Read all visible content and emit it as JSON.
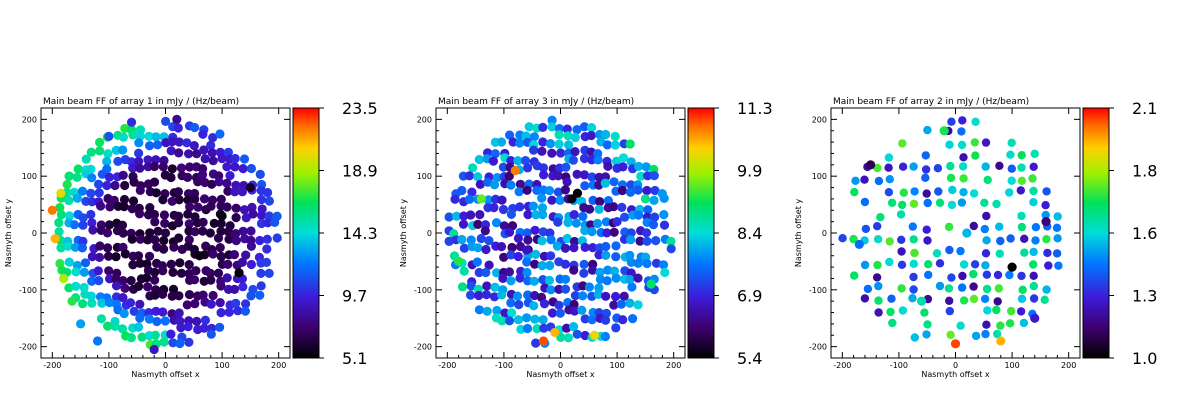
{
  "chart_data": [
    {
      "type": "scatter",
      "title": "Main beam FF of array 1 in mJy / (Hz/beam)",
      "xlabel": "Nasmyth offset x",
      "ylabel": "Nasmyth offset y",
      "xlim": [
        -220,
        220
      ],
      "ylim": [
        -220,
        220
      ],
      "xticks": [
        "-200",
        "-100",
        "0",
        "100",
        "200"
      ],
      "yticks": [
        "-200",
        "-100",
        "0",
        "100",
        "200"
      ],
      "colorbar": {
        "min": 5.1,
        "max": 23.5,
        "ticks": [
          "23.5",
          "18.9",
          "14.3",
          "9.7",
          "5.1"
        ]
      },
      "stripe_angle_deg": 14,
      "stripe_spacing": 24,
      "stripe_width": 17,
      "points": [
        {
          "x": -200,
          "y": 40,
          "v": 22
        },
        {
          "x": -195,
          "y": -10,
          "v": 21
        },
        {
          "x": -185,
          "y": 70,
          "v": 20
        },
        {
          "x": -180,
          "y": -80,
          "v": 19
        },
        {
          "x": -170,
          "y": 100,
          "v": 16
        },
        {
          "x": -165,
          "y": -120,
          "v": 17
        },
        {
          "x": -140,
          "y": 130,
          "v": 15
        },
        {
          "x": -150,
          "y": -160,
          "v": 13
        },
        {
          "x": -120,
          "y": -190,
          "v": 12
        },
        {
          "x": -100,
          "y": 170,
          "v": 11
        },
        {
          "x": -60,
          "y": 195,
          "v": 10
        },
        {
          "x": -20,
          "y": -205,
          "v": 9
        },
        {
          "x": 20,
          "y": 200,
          "v": 8
        },
        {
          "x": 60,
          "y": -40,
          "v": 5.4
        },
        {
          "x": 100,
          "y": 30,
          "v": 5.5
        },
        {
          "x": 130,
          "y": -70,
          "v": 5.3
        },
        {
          "x": 150,
          "y": 80,
          "v": 6
        },
        {
          "x": 0,
          "y": 0,
          "v": 6.5
        }
      ]
    },
    {
      "type": "scatter",
      "title": "Main beam FF of array 3 in mJy / (Hz/beam)",
      "xlabel": "Nasmyth offset x",
      "ylabel": "Nasmyth offset y",
      "xlim": [
        -220,
        220
      ],
      "ylim": [
        -220,
        220
      ],
      "xticks": [
        "-200",
        "-100",
        "0",
        "100",
        "200"
      ],
      "yticks": [
        "-200",
        "-100",
        "0",
        "100",
        "200"
      ],
      "colorbar": {
        "min": 5.4,
        "max": 11.3,
        "ticks": [
          "11.3",
          "9.9",
          "8.4",
          "6.9",
          "5.4"
        ]
      },
      "stripe_angle_deg": 13,
      "stripe_spacing": 22,
      "stripe_width": 15,
      "points": [
        {
          "x": -30,
          "y": -190,
          "v": 11.0
        },
        {
          "x": -10,
          "y": -175,
          "v": 10.5
        },
        {
          "x": 60,
          "y": -180,
          "v": 10.2
        },
        {
          "x": -80,
          "y": 110,
          "v": 10.8
        },
        {
          "x": -140,
          "y": 60,
          "v": 9.5
        },
        {
          "x": -180,
          "y": -50,
          "v": 9.2
        },
        {
          "x": 30,
          "y": 70,
          "v": 5.4
        },
        {
          "x": 20,
          "y": 60,
          "v": 5.5
        },
        {
          "x": 100,
          "y": 20,
          "v": 7.0
        },
        {
          "x": -60,
          "y": -30,
          "v": 6.6
        },
        {
          "x": 160,
          "y": -90,
          "v": 9.0
        },
        {
          "x": 150,
          "y": 60,
          "v": 8.8
        }
      ]
    },
    {
      "type": "scatter",
      "title": "Main beam FF of array 2 in mJy / (Hz/beam)",
      "xlabel": "Nasmyth offset x",
      "ylabel": "Nasmyth offset y",
      "xlim": [
        -220,
        220
      ],
      "ylim": [
        -220,
        220
      ],
      "xticks": [
        "-200",
        "-100",
        "0",
        "100",
        "200"
      ],
      "yticks": [
        "-200",
        "-100",
        "0",
        "100",
        "200"
      ],
      "colorbar": {
        "min": 1.0,
        "max": 2.1,
        "ticks": [
          "2.1",
          "1.8",
          "1.6",
          "1.3",
          "1.0"
        ]
      },
      "stripe_angle_deg": 0,
      "stripe_spacing": 0,
      "stripe_width": 0,
      "points": [
        {
          "x": -20,
          "y": 180,
          "v": 1.7
        },
        {
          "x": 0,
          "y": -195,
          "v": 2.05
        },
        {
          "x": 80,
          "y": -190,
          "v": 1.95
        },
        {
          "x": 100,
          "y": -60,
          "v": 1.0
        },
        {
          "x": 20,
          "y": 0,
          "v": 1.5
        },
        {
          "x": -150,
          "y": 120,
          "v": 1.1
        },
        {
          "x": -170,
          "y": -20,
          "v": 1.4
        },
        {
          "x": 160,
          "y": 20,
          "v": 1.15
        },
        {
          "x": -60,
          "y": -120,
          "v": 1.6
        },
        {
          "x": 140,
          "y": -150,
          "v": 1.25
        }
      ]
    }
  ]
}
